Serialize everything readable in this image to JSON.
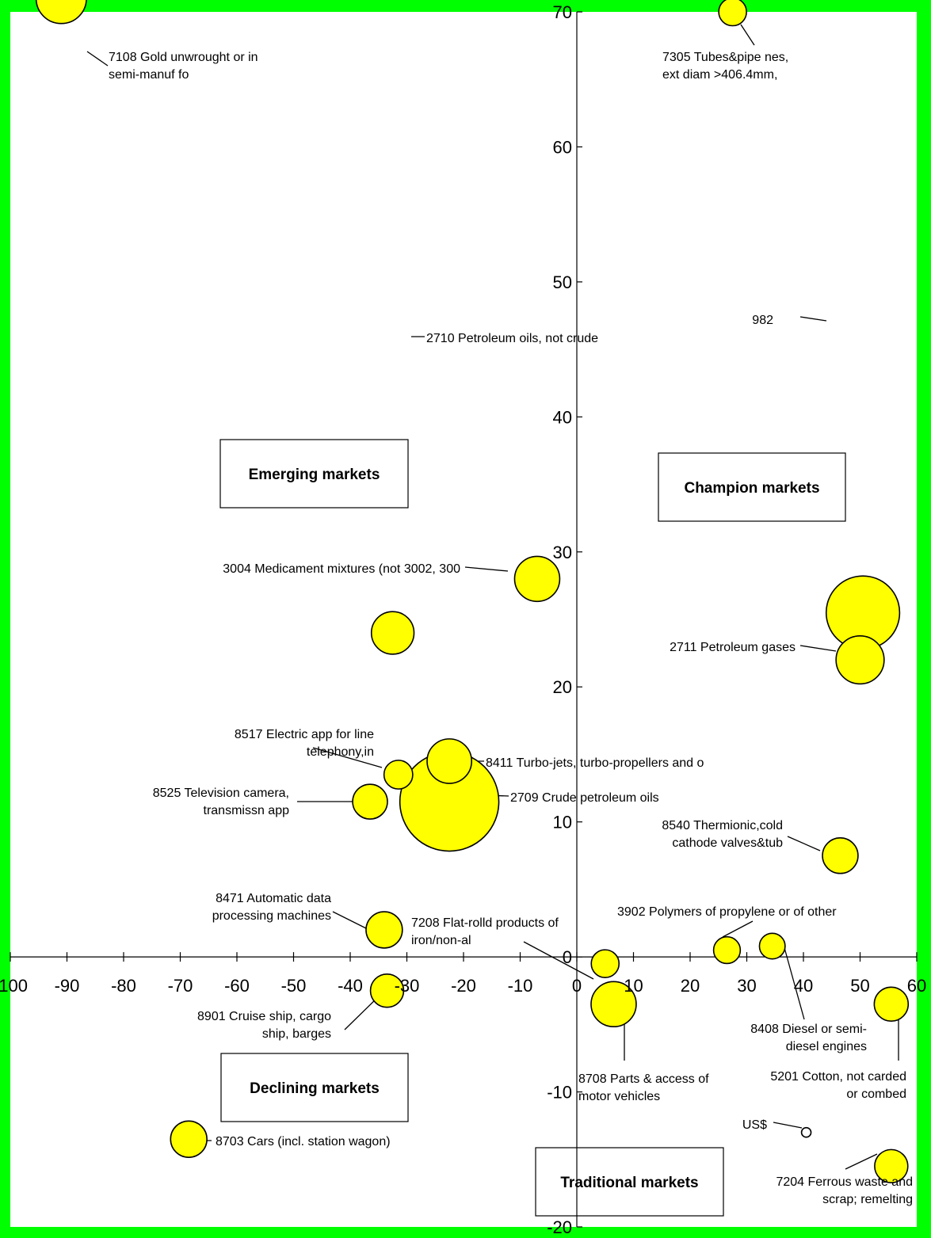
{
  "chart_data": {
    "type": "scatter",
    "title": "",
    "xlabel": "",
    "ylabel": "",
    "xlim": [
      -100,
      60
    ],
    "ylim": [
      -20,
      70
    ],
    "x_ticks": [
      "-100",
      "-90",
      "-80",
      "-70",
      "-60",
      "-50",
      "-40",
      "-30",
      "-20",
      "-10",
      "0",
      "10",
      "20",
      "30",
      "40",
      "50",
      "60"
    ],
    "y_ticks": [
      "70",
      "60",
      "50",
      "40",
      "30",
      "20",
      "10",
      "0",
      "-10",
      "-20"
    ],
    "grid": false,
    "legend": "none",
    "colors": {
      "background": "#00ff00",
      "plot_area": "#ffffff",
      "bubble": "#ffff00",
      "bubble_stroke": "#000000"
    },
    "quadrant_labels": [
      "Emerging markets",
      "Champion markets",
      "Declining markets",
      "Traditional markets"
    ],
    "points": [
      {
        "label_lines": [
          "7108 Gold unwrought or in",
          "semi-manuf fo"
        ],
        "x": -91,
        "y": 71,
        "size": 4.6
      },
      {
        "label_lines": [
          "7305 Tubes&pipe nes,",
          "ext diam >406.4mm,"
        ],
        "x": 27.5,
        "y": 70,
        "size": 1.4
      },
      {
        "label_lines": [
          "3004 Medicament mixtures (not 3002, 300"
        ],
        "x": -7,
        "y": 28,
        "size": 3.7
      },
      {
        "label_lines": [
          "982"
        ],
        "x": 50.5,
        "y": 25.5,
        "size": 9.8
      },
      {
        "label_lines": [
          "2710 Petroleum oils, not crude"
        ],
        "x": -32.5,
        "y": 24,
        "size": 3.3
      },
      {
        "label_lines": [
          "2711 Petroleum gases"
        ],
        "x": 50,
        "y": 22,
        "size": 4.2
      },
      {
        "label_lines": [
          "8517 Electric app for line",
          "telephony,in"
        ],
        "x": -31.5,
        "y": 13.5,
        "size": 1.5
      },
      {
        "label_lines": [
          "8411 Turbo-jets, turbo-propellers and o"
        ],
        "x": -22.5,
        "y": 14.5,
        "size": 3.6
      },
      {
        "label_lines": [
          "2709 Crude petroleum oils"
        ],
        "x": -22.5,
        "y": 11.5,
        "size": 17.8
      },
      {
        "label_lines": [
          "8525 Television camera,",
          "transmissn app"
        ],
        "x": -36.5,
        "y": 11.5,
        "size": 2.2
      },
      {
        "label_lines": [
          "8540 Thermionic,cold",
          "cathode valves&tub"
        ],
        "x": 46.5,
        "y": 7.5,
        "size": 2.3
      },
      {
        "label_lines": [
          "8471 Automatic data",
          "processing machines"
        ],
        "x": -34,
        "y": 2,
        "size": 2.4
      },
      {
        "label_lines": [
          "3902 Polymers of propylene or of other"
        ],
        "x": 26.5,
        "y": 0.5,
        "size": 1.3
      },
      {
        "label_lines": [
          "8408 Diesel or semi-",
          "diesel engines"
        ],
        "x": 34.5,
        "y": 0.8,
        "size": 1.2
      },
      {
        "label_lines": [
          "7208 Flat-rolld products of",
          "iron/non-al"
        ],
        "x": 5,
        "y": -0.5,
        "size": 1.4
      },
      {
        "label_lines": [
          "8901 Cruise ship, cargo",
          "ship, barges"
        ],
        "x": -33.5,
        "y": -2.5,
        "size": 2.0
      },
      {
        "label_lines": [
          "8708 Parts & access of",
          "motor vehicles"
        ],
        "x": 6.5,
        "y": -3.5,
        "size": 3.7
      },
      {
        "label_lines": [
          "5201 Cotton, not carded",
          "or combed"
        ],
        "x": 55.5,
        "y": -3.5,
        "size": 2.1
      },
      {
        "label_lines": [
          "8703 Cars (incl. station wagon)"
        ],
        "x": -68.5,
        "y": -13.5,
        "size": 2.4
      },
      {
        "label_lines": [
          "US$"
        ],
        "x": 40.5,
        "y": -13,
        "size": 0.1
      },
      {
        "label_lines": [
          "7204 Ferrous waste and",
          "scrap; remelting"
        ],
        "x": 55.5,
        "y": -15.5,
        "size": 2.0
      }
    ]
  }
}
